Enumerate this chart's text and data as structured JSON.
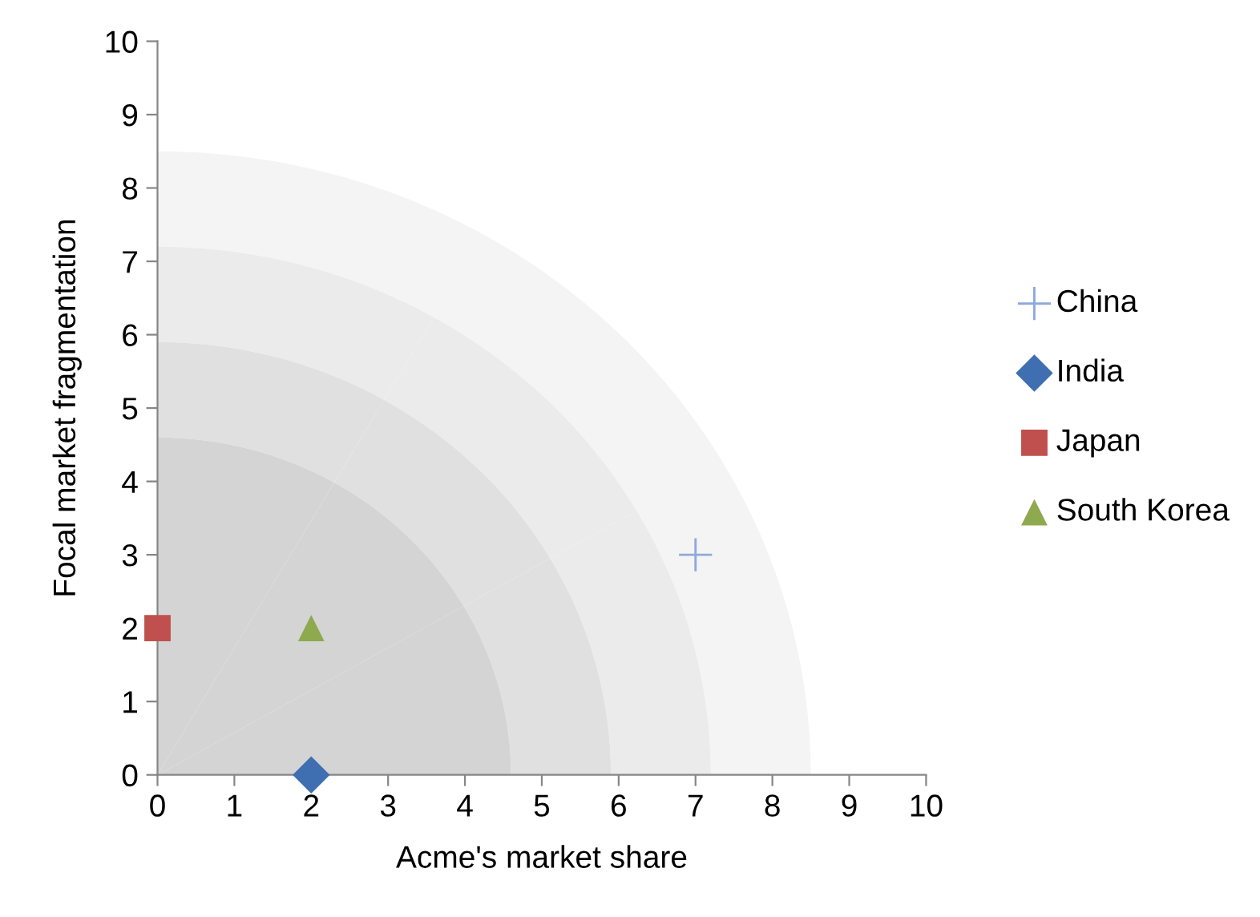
{
  "chart_data": {
    "type": "scatter",
    "xlabel": "Acme's market share",
    "ylabel": "Focal market fragmentation",
    "xlim": [
      0,
      10
    ],
    "ylim": [
      0,
      10
    ],
    "xticks": [
      0,
      1,
      2,
      3,
      4,
      5,
      6,
      7,
      8,
      9,
      10
    ],
    "yticks": [
      0,
      1,
      2,
      3,
      4,
      5,
      6,
      7,
      8,
      9,
      10
    ],
    "grid": false,
    "legend": "right",
    "series": [
      {
        "name": "China",
        "color": "#8eaadb",
        "marker": "cross",
        "x": [
          7
        ],
        "values": [
          3
        ]
      },
      {
        "name": "India",
        "color": "#3f6fb0",
        "marker": "diamond",
        "x": [
          2
        ],
        "values": [
          0
        ]
      },
      {
        "name": "Japan",
        "color": "#c0504d",
        "marker": "square",
        "x": [
          0
        ],
        "values": [
          2
        ]
      },
      {
        "name": "South Korea",
        "color": "#8ea94e",
        "marker": "triangle",
        "x": [
          2
        ],
        "values": [
          2
        ]
      }
    ]
  }
}
